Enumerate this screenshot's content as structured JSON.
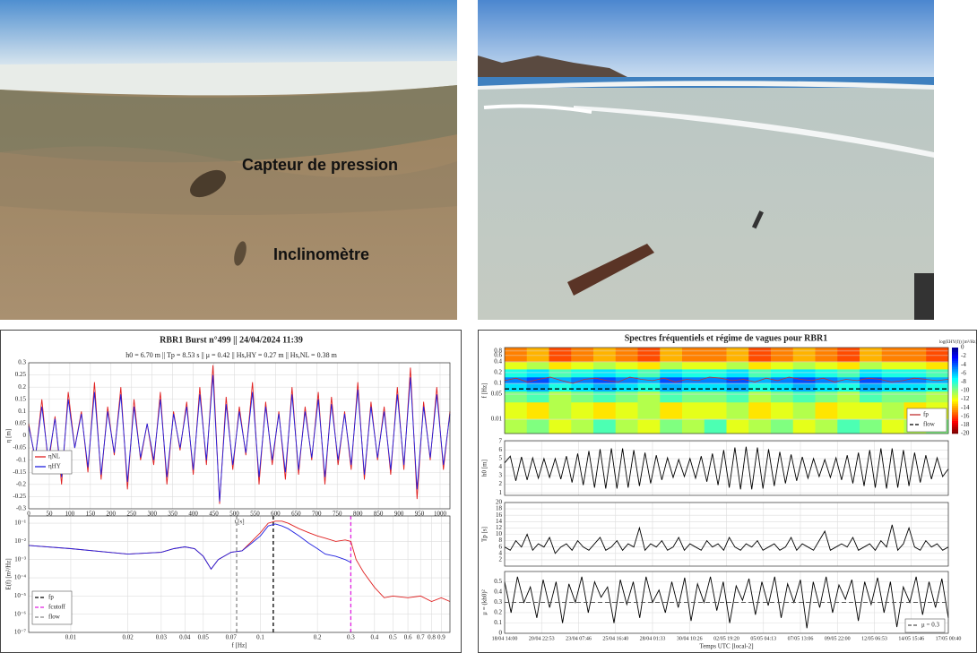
{
  "photo_labels": {
    "sensor": "Capteur de pression",
    "tilt": "Inclinomètre"
  },
  "chart_data": [
    {
      "type": "line",
      "title": "RBR1 Burst n°499 || 24/04/2024 11:39",
      "subtitle": "h0 = 6.70 m || Tp = 8.53 s || μ = 0.42 || Hs,HY = 0.27 m || Hs,NL = 0.38 m",
      "xlabel": "t [s]",
      "ylabel": "η [m]",
      "xlim": [
        0,
        1024
      ],
      "xticks": [
        0,
        50,
        100,
        150,
        200,
        250,
        300,
        350,
        400,
        450,
        500,
        550,
        600,
        650,
        700,
        750,
        800,
        850,
        900,
        950,
        1000
      ],
      "ylim": [
        -0.3,
        0.3
      ],
      "yticks": [
        -0.3,
        -0.25,
        -0.2,
        -0.15,
        -0.1,
        -0.05,
        0,
        0.05,
        0.1,
        0.15,
        0.2,
        0.25,
        0.3
      ],
      "grid": true,
      "x": [
        0,
        16,
        32,
        48,
        64,
        80,
        96,
        112,
        128,
        144,
        160,
        176,
        192,
        208,
        224,
        240,
        256,
        272,
        288,
        304,
        320,
        336,
        352,
        368,
        384,
        400,
        416,
        432,
        448,
        464,
        480,
        496,
        512,
        528,
        544,
        560,
        576,
        592,
        608,
        624,
        640,
        656,
        672,
        688,
        704,
        720,
        736,
        752,
        768,
        784,
        800,
        816,
        832,
        848,
        864,
        880,
        896,
        912,
        928,
        944,
        960,
        976,
        992,
        1008,
        1024
      ],
      "series": [
        {
          "name": "ηNL",
          "color": "#e02020",
          "values": [
            0.05,
            -0.1,
            0.15,
            -0.12,
            0.08,
            -0.2,
            0.18,
            -0.05,
            0.1,
            -0.15,
            0.22,
            -0.18,
            0.12,
            -0.08,
            0.2,
            -0.22,
            0.15,
            -0.1,
            0.05,
            -0.12,
            0.18,
            -0.2,
            0.1,
            -0.06,
            0.14,
            -0.16,
            0.2,
            -0.12,
            0.29,
            -0.28,
            0.16,
            -0.14,
            0.12,
            -0.08,
            0.22,
            -0.2,
            0.14,
            -0.12,
            0.1,
            -0.18,
            0.2,
            -0.16,
            0.12,
            -0.1,
            0.18,
            -0.2,
            0.16,
            -0.12,
            0.1,
            -0.14,
            0.22,
            -0.18,
            0.14,
            -0.1,
            0.12,
            -0.16,
            0.2,
            -0.14,
            0.28,
            -0.26,
            0.14,
            -0.1,
            0.2,
            -0.14,
            0.1
          ]
        },
        {
          "name": "ηHY",
          "color": "#2020e0",
          "values": [
            0.04,
            -0.09,
            0.12,
            -0.1,
            0.07,
            -0.17,
            0.15,
            -0.05,
            0.09,
            -0.13,
            0.18,
            -0.16,
            0.1,
            -0.07,
            0.17,
            -0.19,
            0.12,
            -0.09,
            0.05,
            -0.1,
            0.15,
            -0.17,
            0.09,
            -0.05,
            0.12,
            -0.14,
            0.17,
            -0.1,
            0.25,
            -0.27,
            0.13,
            -0.12,
            0.1,
            -0.07,
            0.18,
            -0.17,
            0.12,
            -0.1,
            0.09,
            -0.15,
            0.17,
            -0.14,
            0.1,
            -0.09,
            0.15,
            -0.17,
            0.13,
            -0.1,
            0.09,
            -0.12,
            0.19,
            -0.16,
            0.12,
            -0.09,
            0.1,
            -0.14,
            0.17,
            -0.12,
            0.24,
            -0.22,
            0.12,
            -0.09,
            0.17,
            -0.12,
            0.09
          ]
        }
      ]
    },
    {
      "type": "line",
      "xscale": "log",
      "yscale": "log",
      "xlabel": "f [Hz]",
      "ylabel": "E(f) [m²/Hz]",
      "xlim": [
        0.006,
        1
      ],
      "ylim": [
        1e-07,
        0.25
      ],
      "grid": true,
      "xticks": [
        0.01,
        0.02,
        0.03,
        0.04,
        0.05,
        0.07,
        0.1,
        0.2,
        0.3,
        0.4,
        0.5,
        0.6,
        0.7,
        0.8,
        0.9
      ],
      "yticks": [
        {
          "value": 1e-07,
          "label": "10⁻⁷"
        },
        {
          "value": 1e-06,
          "label": "10⁻⁶"
        },
        {
          "value": 1e-05,
          "label": "10⁻⁵"
        },
        {
          "value": 0.0001,
          "label": "10⁻⁴"
        },
        {
          "value": 0.001,
          "label": "10⁻³"
        },
        {
          "value": 0.01,
          "label": "10⁻²"
        },
        {
          "value": 0.1,
          "label": "10⁻¹"
        }
      ],
      "x": [
        0.006,
        0.01,
        0.02,
        0.03,
        0.035,
        0.04,
        0.045,
        0.05,
        0.055,
        0.06,
        0.07,
        0.08,
        0.09,
        0.1,
        0.11,
        0.12,
        0.13,
        0.14,
        0.16,
        0.18,
        0.2,
        0.22,
        0.25,
        0.28,
        0.3,
        0.32,
        0.35,
        0.4,
        0.45,
        0.5,
        0.6,
        0.7,
        0.8,
        0.9,
        1.0
      ],
      "series": [
        {
          "color": "#e02020",
          "values": [
            0.006,
            0.004,
            0.002,
            0.0025,
            0.004,
            0.005,
            0.004,
            0.0015,
            0.0003,
            0.001,
            0.0025,
            0.003,
            0.01,
            0.03,
            0.1,
            0.13,
            0.13,
            0.1,
            0.05,
            0.03,
            0.02,
            0.015,
            0.01,
            0.012,
            0.01,
            0.001,
            0.0002,
            3e-05,
            8e-06,
            1e-05,
            8e-06,
            1e-05,
            5e-06,
            8e-06,
            5e-06
          ]
        },
        {
          "color": "#2020e0",
          "values": [
            0.006,
            0.004,
            0.002,
            0.0025,
            0.004,
            0.005,
            0.004,
            0.0015,
            0.0003,
            0.001,
            0.0025,
            0.003,
            0.008,
            0.02,
            0.07,
            0.09,
            0.07,
            0.05,
            0.02,
            0.008,
            0.004,
            0.002,
            0.0015,
            0.001,
            0.0007,
            null,
            null,
            null,
            null,
            null,
            null,
            null,
            null,
            null,
            null
          ]
        }
      ],
      "vlines": [
        {
          "name": "fp",
          "value": 0.117,
          "color": "#000000"
        },
        {
          "name": "fcutoff",
          "value": 0.3,
          "color": "#e020e0"
        },
        {
          "name": "flow",
          "value": 0.075,
          "color": "#888888"
        }
      ]
    },
    {
      "type": "heatmap",
      "title": "Spectres fréquentiels et régime de vagues pour RBR1",
      "ylabel": "f [Hz]",
      "yscale": "log",
      "ylim": [
        0.004,
        1.0
      ],
      "yticks": [
        0.8,
        0.6,
        0.4,
        0.2,
        0.1,
        0.05,
        0.01
      ],
      "colorbar_label": "log(EHY(f)) [m²/Hz]",
      "zlim": [
        -20,
        0
      ],
      "zticks": [
        0,
        -2,
        -4,
        -6,
        -8,
        -10,
        -12,
        -14,
        -16,
        -18,
        -20
      ],
      "freq_bins": [
        0.004,
        0.01,
        0.03,
        0.06,
        0.1,
        0.15,
        0.25,
        0.4,
        1.0
      ],
      "matrix": [
        [
          -11,
          -10,
          -12,
          -11,
          -9,
          -11,
          -12,
          -10,
          -11,
          -9,
          -12,
          -11,
          -10,
          -12,
          -11,
          -9,
          -10,
          -12,
          -11,
          -10
        ],
        [
          -12,
          -13,
          -11,
          -12,
          -13,
          -12,
          -11,
          -13,
          -12,
          -12,
          -11,
          -13,
          -12,
          -11,
          -13,
          -12,
          -12,
          -11,
          -13,
          -12
        ],
        [
          -10,
          -9,
          -11,
          -10,
          -9,
          -10,
          -11,
          -9,
          -10,
          -10,
          -9,
          -11,
          -10,
          -9,
          -10,
          -11,
          -9,
          -10,
          -10,
          -11
        ],
        [
          -7,
          -6,
          -8,
          -7,
          -6,
          -7,
          -8,
          -6,
          -7,
          -7,
          -6,
          -8,
          -7,
          -6,
          -7,
          -8,
          -6,
          -7,
          -7,
          -8
        ],
        [
          -5,
          -4,
          -6,
          -5,
          -4,
          -5,
          -6,
          -4,
          -5,
          -5,
          -4,
          -6,
          -5,
          -4,
          -5,
          -6,
          -4,
          -5,
          -5,
          -6
        ],
        [
          -8,
          -7,
          -9,
          -8,
          -7,
          -8,
          -9,
          -7,
          -8,
          -8,
          -7,
          -9,
          -8,
          -7,
          -8,
          -9,
          -7,
          -8,
          -8,
          -9
        ],
        [
          -12,
          -11,
          -13,
          -12,
          -11,
          -12,
          -13,
          -11,
          -12,
          -12,
          -11,
          -13,
          -12,
          -11,
          -12,
          -13,
          -11,
          -12,
          -12,
          -13
        ],
        [
          -15,
          -14,
          -16,
          -15,
          -14,
          -15,
          -16,
          -14,
          -15,
          -15,
          -14,
          -16,
          -15,
          -14,
          -15,
          -16,
          -14,
          -15,
          -15,
          -16
        ]
      ],
      "fp": {
        "name": "fp",
        "color": "#c03030",
        "values": [
          0.12,
          0.14,
          0.11,
          0.13,
          0.15,
          0.12,
          0.1,
          0.13,
          0.14,
          0.12,
          0.11,
          0.15,
          0.13,
          0.12,
          0.14,
          0.11,
          0.13,
          0.12,
          0.15,
          0.14,
          0.12,
          0.13,
          0.11,
          0.14,
          0.12,
          0.15,
          0.13,
          0.12,
          0.14,
          0.11,
          0.13,
          0.12,
          0.14,
          0.13,
          0.11,
          0.12,
          0.14,
          0.13,
          0.12,
          0.13
        ]
      },
      "f_low": {
        "name": "flow",
        "value": 0.07
      }
    },
    {
      "type": "line",
      "ylabel": "h0 [m]",
      "ylim": [
        0.7,
        7.1
      ],
      "yticks": [
        1,
        2,
        3,
        4,
        5,
        6,
        7
      ],
      "color": "#000000",
      "values": [
        4.5,
        5.3,
        2.4,
        5.2,
        2.5,
        5.1,
        2.7,
        5.0,
        2.8,
        5.0,
        2.6,
        5.3,
        2.2,
        5.6,
        1.9,
        5.9,
        1.6,
        6.1,
        1.5,
        6.2,
        1.5,
        6.2,
        1.6,
        6.0,
        1.8,
        5.7,
        2.1,
        5.4,
        2.5,
        5.1,
        2.8,
        4.9,
        2.9,
        5.0,
        2.7,
        5.3,
        2.3,
        5.6,
        1.9,
        6.0,
        1.6,
        6.3,
        1.4,
        6.4,
        1.4,
        6.3,
        1.5,
        6.1,
        1.8,
        5.8,
        2.1,
        5.5,
        2.4,
        5.2,
        2.7,
        5.0,
        2.9,
        4.9,
        2.8,
        5.1,
        2.5,
        5.4,
        2.1,
        5.7,
        1.8,
        6.0,
        1.6,
        6.2,
        1.5,
        6.2,
        1.6,
        6.0,
        1.8,
        5.7,
        2.2,
        5.4,
        2.6,
        5.1,
        2.9,
        3.8
      ]
    },
    {
      "type": "line",
      "ylabel": "Tp [s]",
      "ylim": [
        0,
        20
      ],
      "yticks": [
        2,
        4,
        6,
        8,
        10,
        12,
        14,
        16,
        18,
        20
      ],
      "color": "#000000",
      "values": [
        6,
        5,
        8,
        6,
        10,
        5,
        7,
        6,
        9,
        4,
        6,
        7,
        5,
        8,
        6,
        5,
        7,
        9,
        5,
        6,
        8,
        5,
        7,
        6,
        12,
        5,
        7,
        6,
        8,
        5,
        6,
        9,
        5,
        7,
        6,
        5,
        8,
        6,
        7,
        5,
        9,
        6,
        5,
        7,
        6,
        8,
        5,
        6,
        7,
        5,
        6,
        9,
        5,
        7,
        6,
        5,
        8,
        11,
        5,
        6,
        7,
        6,
        9,
        5,
        6,
        7,
        5,
        8,
        6,
        13,
        5,
        7,
        12,
        6,
        5,
        8,
        6,
        7,
        5,
        6
      ]
    },
    {
      "type": "line",
      "ylabel": "μ = (kh0)²",
      "xlabel": "Temps UTC [local-2]",
      "ylim": [
        0,
        0.6
      ],
      "yticks": [
        0,
        0.1,
        0.2,
        0.3,
        0.4,
        0.5
      ],
      "color": "#000000",
      "values": [
        0.5,
        0.2,
        0.55,
        0.3,
        0.45,
        0.15,
        0.52,
        0.25,
        0.5,
        0.1,
        0.48,
        0.3,
        0.55,
        0.2,
        0.5,
        0.35,
        0.45,
        0.1,
        0.52,
        0.28,
        0.5,
        0.15,
        0.55,
        0.3,
        0.42,
        0.2,
        0.5,
        0.25,
        0.54,
        0.12,
        0.48,
        0.3,
        0.55,
        0.22,
        0.5,
        0.1,
        0.46,
        0.32,
        0.53,
        0.18,
        0.5,
        0.27,
        0.55,
        0.15,
        0.48,
        0.3,
        0.52,
        0.05,
        0.5,
        0.25,
        0.55,
        0.2,
        0.47,
        0.33,
        0.52,
        0.12,
        0.5,
        0.28,
        0.54,
        0.2,
        0.5,
        0.06,
        0.45,
        0.3,
        0.55,
        0.18,
        0.5,
        0.25,
        0.53,
        0.15
      ],
      "reference": {
        "name": "μ = 0.3",
        "value": 0.3
      },
      "x_labels": [
        "18/04 14:00",
        "20/04 22:53",
        "23/04 07:46",
        "25/04 16:40",
        "28/04 01:33",
        "30/04 10:26",
        "02/05 19:20",
        "05/05 04:13",
        "07/05 13:06",
        "09/05 22:00",
        "12/05 06:53",
        "14/05 15:46",
        "17/05 00:40"
      ]
    }
  ]
}
